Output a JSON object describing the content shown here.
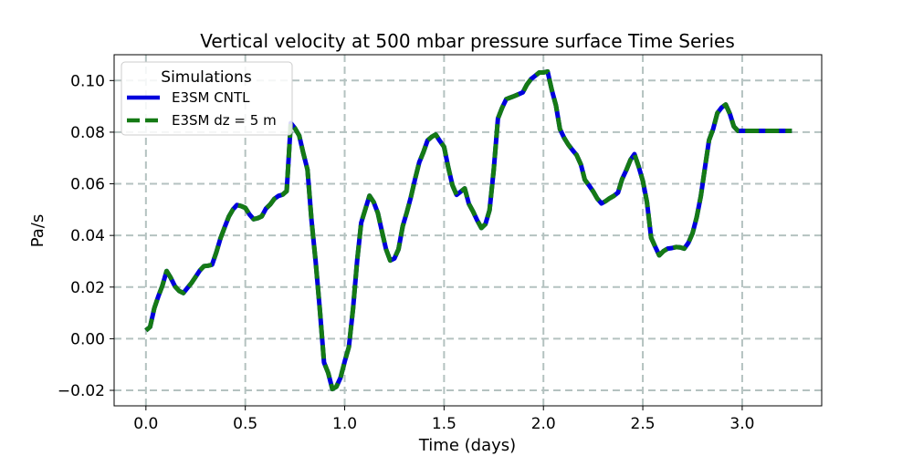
{
  "chart_data": {
    "type": "line",
    "title": "Vertical velocity at 500 mbar pressure surface Time Series",
    "xlabel": "Time (days)",
    "ylabel": "Pa/s",
    "xlim": [
      -0.16,
      3.4
    ],
    "ylim": [
      -0.026,
      0.11
    ],
    "xticks": [
      0.0,
      0.5,
      1.0,
      1.5,
      2.0,
      2.5,
      3.0
    ],
    "xtick_labels": [
      "0.0",
      "0.5",
      "1.0",
      "1.5",
      "2.0",
      "2.5",
      "3.0"
    ],
    "yticks": [
      -0.02,
      0.0,
      0.02,
      0.04,
      0.06,
      0.08,
      0.1
    ],
    "ytick_labels": [
      "−0.02",
      "0.00",
      "0.02",
      "0.04",
      "0.06",
      "0.08",
      "0.10"
    ],
    "grid": true,
    "legend": {
      "title": "Simulations",
      "position": "upper-left"
    },
    "x": [
      0.0,
      0.021,
      0.042,
      0.063,
      0.083,
      0.104,
      0.125,
      0.146,
      0.167,
      0.188,
      0.208,
      0.229,
      0.25,
      0.271,
      0.292,
      0.313,
      0.333,
      0.354,
      0.375,
      0.396,
      0.417,
      0.438,
      0.458,
      0.479,
      0.5,
      0.521,
      0.542,
      0.563,
      0.583,
      0.604,
      0.625,
      0.646,
      0.667,
      0.688,
      0.708,
      0.729,
      0.75,
      0.771,
      0.792,
      0.813,
      0.833,
      0.854,
      0.875,
      0.896,
      0.917,
      0.938,
      0.958,
      0.979,
      1.0,
      1.021,
      1.042,
      1.063,
      1.083,
      1.104,
      1.125,
      1.146,
      1.167,
      1.188,
      1.208,
      1.229,
      1.25,
      1.271,
      1.292,
      1.313,
      1.333,
      1.354,
      1.375,
      1.396,
      1.417,
      1.438,
      1.458,
      1.479,
      1.5,
      1.521,
      1.542,
      1.563,
      1.583,
      1.604,
      1.625,
      1.646,
      1.667,
      1.688,
      1.708,
      1.729,
      1.75,
      1.771,
      1.792,
      1.813,
      1.833,
      1.854,
      1.875,
      1.896,
      1.917,
      1.938,
      1.958,
      1.979,
      2.0,
      2.021,
      2.042,
      2.063,
      2.083,
      2.104,
      2.125,
      2.146,
      2.167,
      2.188,
      2.208,
      2.229,
      2.25,
      2.271,
      2.292,
      2.313,
      2.333,
      2.354,
      2.375,
      2.396,
      2.417,
      2.438,
      2.458,
      2.479,
      2.5,
      2.521,
      2.542,
      2.563,
      2.583,
      2.604,
      2.625,
      2.646,
      2.667,
      2.688,
      2.708,
      2.729,
      2.75,
      2.771,
      2.792,
      2.813,
      2.833,
      2.854,
      2.875,
      2.896,
      2.917,
      2.938,
      2.958,
      2.979,
      3.0,
      3.021,
      3.042,
      3.063,
      3.083,
      3.104,
      3.125,
      3.146,
      3.167,
      3.188,
      3.208,
      3.229,
      3.25
    ],
    "series": [
      {
        "name": "E3SM CNTL",
        "color": "#0000dd",
        "style": "solid",
        "values": [
          0.0032,
          0.0046,
          0.0118,
          0.0165,
          0.0206,
          0.0262,
          0.0236,
          0.0203,
          0.0185,
          0.0177,
          0.0196,
          0.0216,
          0.024,
          0.0264,
          0.0281,
          0.0283,
          0.0287,
          0.0334,
          0.0389,
          0.0431,
          0.0473,
          0.0501,
          0.0518,
          0.0514,
          0.0507,
          0.0481,
          0.0463,
          0.0467,
          0.0474,
          0.0504,
          0.052,
          0.0542,
          0.0553,
          0.0558,
          0.0572,
          0.0835,
          0.0815,
          0.0787,
          0.0719,
          0.0655,
          0.0459,
          0.03,
          0.0113,
          -0.0092,
          -0.0133,
          -0.0195,
          -0.0186,
          -0.0151,
          -0.0089,
          -0.0032,
          0.0117,
          0.0303,
          0.0449,
          0.0502,
          0.0554,
          0.0529,
          0.0486,
          0.0413,
          0.0347,
          0.0303,
          0.0311,
          0.0347,
          0.0436,
          0.0491,
          0.0548,
          0.0618,
          0.0683,
          0.0722,
          0.0768,
          0.0782,
          0.0791,
          0.0766,
          0.0743,
          0.0665,
          0.0595,
          0.0557,
          0.0569,
          0.0582,
          0.0522,
          0.0492,
          0.0458,
          0.0429,
          0.0444,
          0.0498,
          0.0655,
          0.0853,
          0.0894,
          0.0928,
          0.0934,
          0.094,
          0.0947,
          0.0954,
          0.0985,
          0.1006,
          0.1018,
          0.1031,
          0.1031,
          0.1035,
          0.0963,
          0.0904,
          0.0812,
          0.0778,
          0.0752,
          0.0731,
          0.0711,
          0.0675,
          0.0616,
          0.0594,
          0.0571,
          0.0543,
          0.0524,
          0.0533,
          0.0544,
          0.0553,
          0.0566,
          0.0618,
          0.0653,
          0.0693,
          0.0715,
          0.0667,
          0.0611,
          0.0529,
          0.0391,
          0.0355,
          0.0323,
          0.0339,
          0.0349,
          0.0351,
          0.0355,
          0.0354,
          0.0349,
          0.0371,
          0.0408,
          0.0471,
          0.0552,
          0.0664,
          0.0769,
          0.0812,
          0.0874,
          0.0895,
          0.0907,
          0.0871,
          0.0822,
          0.0805,
          0.0805,
          0.0805,
          0.0805,
          0.0805,
          0.0805,
          0.0805,
          0.0805,
          0.0805,
          0.0805,
          0.0805,
          0.0805,
          0.0805,
          0.0805
        ]
      },
      {
        "name": "E3SM dz = 5 m",
        "color": "#157a15",
        "style": "dashed",
        "values": [
          0.0032,
          0.0046,
          0.0118,
          0.0165,
          0.0206,
          0.0262,
          0.0236,
          0.0203,
          0.0185,
          0.0177,
          0.0196,
          0.0216,
          0.024,
          0.0264,
          0.0281,
          0.0283,
          0.0287,
          0.0334,
          0.0389,
          0.0431,
          0.0473,
          0.0501,
          0.0518,
          0.0514,
          0.0507,
          0.0481,
          0.0463,
          0.0467,
          0.0474,
          0.0504,
          0.052,
          0.0542,
          0.0553,
          0.0558,
          0.0572,
          0.0835,
          0.0815,
          0.0787,
          0.0719,
          0.0655,
          0.0459,
          0.03,
          0.0113,
          -0.0092,
          -0.0133,
          -0.0195,
          -0.0186,
          -0.0151,
          -0.0089,
          -0.0032,
          0.0117,
          0.0303,
          0.0449,
          0.0502,
          0.0554,
          0.0529,
          0.0486,
          0.0413,
          0.0347,
          0.0303,
          0.0311,
          0.0347,
          0.0436,
          0.0491,
          0.0548,
          0.0618,
          0.0683,
          0.0722,
          0.0768,
          0.0782,
          0.0791,
          0.0766,
          0.0743,
          0.0665,
          0.0595,
          0.0557,
          0.0569,
          0.0582,
          0.0522,
          0.0492,
          0.0458,
          0.0429,
          0.0444,
          0.0498,
          0.0655,
          0.0853,
          0.0894,
          0.0928,
          0.0934,
          0.094,
          0.0947,
          0.0954,
          0.0985,
          0.1006,
          0.1018,
          0.1031,
          0.1031,
          0.1035,
          0.0963,
          0.0904,
          0.0812,
          0.0778,
          0.0752,
          0.0731,
          0.0711,
          0.0675,
          0.0616,
          0.0594,
          0.0571,
          0.0543,
          0.0524,
          0.0533,
          0.0544,
          0.0553,
          0.0566,
          0.0618,
          0.0653,
          0.0693,
          0.0715,
          0.0667,
          0.0611,
          0.0529,
          0.0391,
          0.0355,
          0.0323,
          0.0339,
          0.0349,
          0.0351,
          0.0355,
          0.0354,
          0.0349,
          0.0371,
          0.0408,
          0.0471,
          0.0552,
          0.0664,
          0.0769,
          0.0812,
          0.0874,
          0.0895,
          0.0907,
          0.0871,
          0.0822,
          0.0805,
          0.0805,
          0.0805,
          0.0805,
          0.0805,
          0.0805,
          0.0805,
          0.0805,
          0.0805,
          0.0805,
          0.0805,
          0.0805,
          0.0805,
          0.0805
        ]
      }
    ]
  }
}
